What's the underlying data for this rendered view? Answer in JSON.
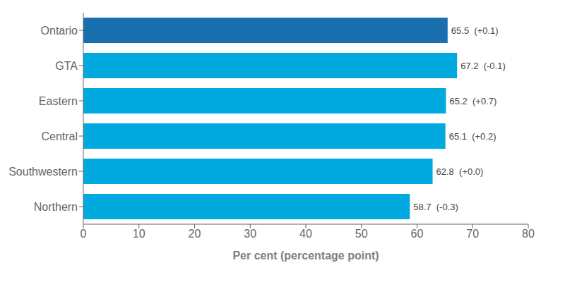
{
  "chart_data": {
    "type": "bar",
    "orientation": "horizontal",
    "categories": [
      "Ontario",
      "GTA",
      "Eastern",
      "Central",
      "Southwestern",
      "Northern"
    ],
    "values": [
      65.5,
      67.2,
      65.2,
      65.1,
      62.8,
      58.7
    ],
    "value_labels": [
      "65.5  (+0.1)",
      "67.2  (-0.1)",
      "65.2  (+0.7)",
      "65.1  (+0.2)",
      "62.8  (+0.0)",
      "58.7  (-0.3)"
    ],
    "colors": [
      "#1a6faf",
      "#00aade",
      "#00aade",
      "#00aade",
      "#00aade",
      "#00aade"
    ],
    "xlabel": "Per cent (percentage point)",
    "xlim": [
      0,
      80
    ],
    "xticks": [
      0,
      10,
      20,
      30,
      40,
      50,
      60,
      70,
      80
    ],
    "grid": false,
    "data_labels": true
  }
}
